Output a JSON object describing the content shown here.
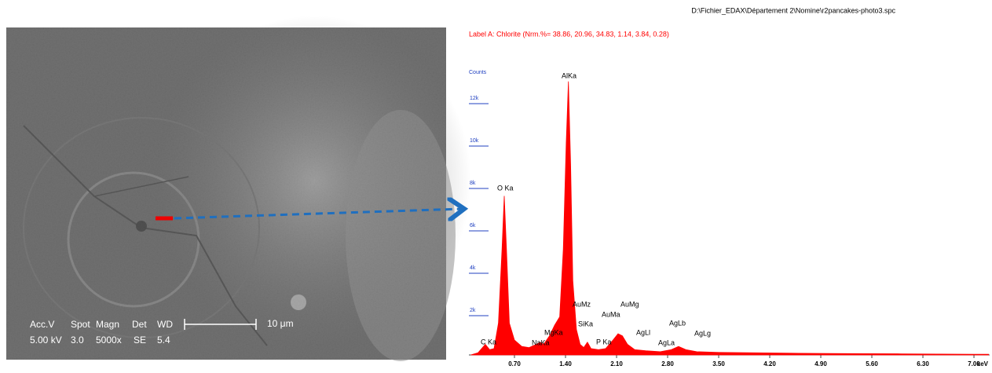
{
  "sem": {
    "labels": [
      "Acc.V",
      "Spot",
      "Magn",
      "Det",
      "WD"
    ],
    "values": [
      "5.00 kV",
      "3.0",
      "5000x",
      "SE",
      "5.4"
    ],
    "scale_bar": "10 μm"
  },
  "chart_data": {
    "type": "area",
    "file_path": "D:\\Fichier_EDAX\\Département 2\\Nomine\\r2pancakes-photo3.spc",
    "title": "Label A: Chlorite (Nrm.%= 38.86, 20.96, 34.83, 1.14, 3.84, 0.28)",
    "y_label": "Counts",
    "x_label": "keV",
    "color": "#ff0000",
    "x": [
      0.1,
      0.2,
      0.3,
      0.36,
      0.42,
      0.48,
      0.53,
      0.56,
      0.59,
      0.63,
      0.7,
      0.8,
      0.9,
      1.0,
      1.05,
      1.1,
      1.18,
      1.25,
      1.32,
      1.37,
      1.41,
      1.44,
      1.47,
      1.5,
      1.55,
      1.6,
      1.65,
      1.7,
      1.75,
      1.85,
      1.95,
      2.05,
      2.12,
      2.18,
      2.25,
      2.35,
      2.5,
      2.7,
      2.85,
      2.95,
      3.05,
      3.2,
      3.5,
      4.0,
      4.5,
      5.0,
      5.5,
      6.0,
      6.5,
      7.0,
      7.2
    ],
    "values": [
      0,
      100,
      500,
      250,
      300,
      1500,
      5000,
      7500,
      5000,
      1500,
      700,
      400,
      350,
      500,
      600,
      500,
      900,
      1400,
      1800,
      5000,
      10000,
      12900,
      9000,
      3500,
      1200,
      500,
      350,
      600,
      300,
      250,
      300,
      700,
      1000,
      900,
      500,
      250,
      200,
      150,
      250,
      400,
      250,
      150,
      120,
      100,
      80,
      70,
      60,
      50,
      40,
      30,
      30
    ],
    "annotations": [
      "C Ka",
      "O Ka",
      "NaKa",
      "MgKa",
      "AlKa",
      "AuMz",
      "AuMa",
      "AuMg",
      "SiKa",
      "P Ka",
      "AgLl",
      "AgLb",
      "AgLa",
      "AgLg"
    ],
    "xlim": [
      0,
      7.2
    ],
    "ylim": [
      0,
      13500
    ],
    "xticks": [
      {
        "value": 0.7,
        "label": "0.70"
      },
      {
        "value": 1.4,
        "label": "1.40"
      },
      {
        "value": 2.1,
        "label": "2.10"
      },
      {
        "value": 2.8,
        "label": "2.80"
      },
      {
        "value": 3.5,
        "label": "3.50"
      },
      {
        "value": 4.2,
        "label": "4.20"
      },
      {
        "value": 4.9,
        "label": "4.90"
      },
      {
        "value": 5.6,
        "label": "5.60"
      },
      {
        "value": 6.3,
        "label": "6.30"
      },
      {
        "value": 7.0,
        "label": "7.00"
      }
    ],
    "yticks": [
      {
        "value": 2000,
        "label": "2k"
      },
      {
        "value": 4000,
        "label": "4k"
      },
      {
        "value": 6000,
        "label": "6k"
      },
      {
        "value": 8000,
        "label": "8k"
      },
      {
        "value": 10000,
        "label": "10k"
      },
      {
        "value": 12000,
        "label": "12k"
      }
    ]
  }
}
